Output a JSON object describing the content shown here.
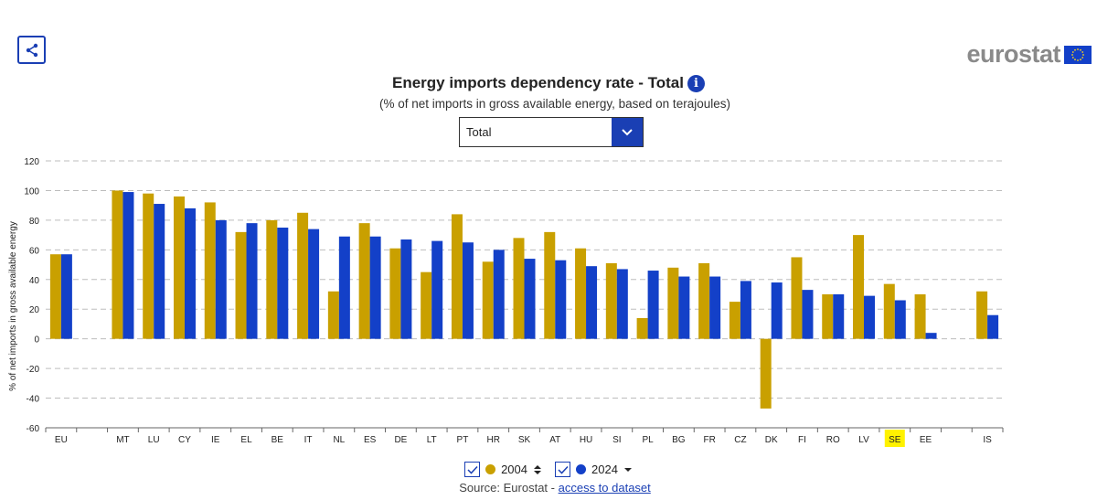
{
  "header": {
    "share_icon": "share-icon",
    "logo_text": "eurostat",
    "title": "Energy imports dependency rate - Total",
    "info_icon_glyph": "i",
    "subtitle": "(% of net imports in gross available energy, based on terajoules)",
    "dropdown": {
      "selected": "Total",
      "icon": "chevron-down-icon"
    }
  },
  "colors": {
    "series_2004": "#c9a000",
    "series_2024": "#1340c8",
    "accent": "#1a3fb4",
    "highlight": "#fff200"
  },
  "chart_data": {
    "type": "bar",
    "title": "Energy imports dependency rate - Total",
    "ylabel": "% of net imports in gross available energy",
    "xlabel": "",
    "ylim": [
      -60,
      120
    ],
    "yticks": [
      120,
      100,
      80,
      60,
      40,
      20,
      0,
      -20,
      -40,
      -60
    ],
    "grid": true,
    "categories": [
      "EU",
      "",
      "MT",
      "LU",
      "CY",
      "IE",
      "EL",
      "BE",
      "IT",
      "NL",
      "ES",
      "DE",
      "LT",
      "PT",
      "HR",
      "SK",
      "AT",
      "HU",
      "SI",
      "PL",
      "BG",
      "FR",
      "CZ",
      "DK",
      "FI",
      "RO",
      "LV",
      "SE",
      "EE",
      "",
      "IS"
    ],
    "highlight_category": "SE",
    "series": [
      {
        "name": "2004",
        "values": [
          57,
          null,
          100,
          98,
          96,
          92,
          72,
          80,
          85,
          32,
          78,
          61,
          45,
          84,
          52,
          68,
          72,
          61,
          51,
          14,
          48,
          51,
          25,
          -47,
          55,
          30,
          70,
          37,
          30,
          null,
          32
        ]
      },
      {
        "name": "2024",
        "values": [
          57,
          null,
          99,
          91,
          88,
          80,
          78,
          75,
          74,
          69,
          69,
          67,
          66,
          65,
          60,
          54,
          53,
          49,
          47,
          46,
          42,
          42,
          39,
          38,
          33,
          30,
          29,
          26,
          4,
          null,
          16
        ]
      }
    ]
  },
  "legend": {
    "items": [
      {
        "label": "2004",
        "sort_icon": "sort-icon"
      },
      {
        "label": "2024",
        "sort_icon": "caret-down-icon"
      }
    ]
  },
  "footer": {
    "source_prefix": "Source: Eurostat - ",
    "link_text": "access to dataset"
  }
}
